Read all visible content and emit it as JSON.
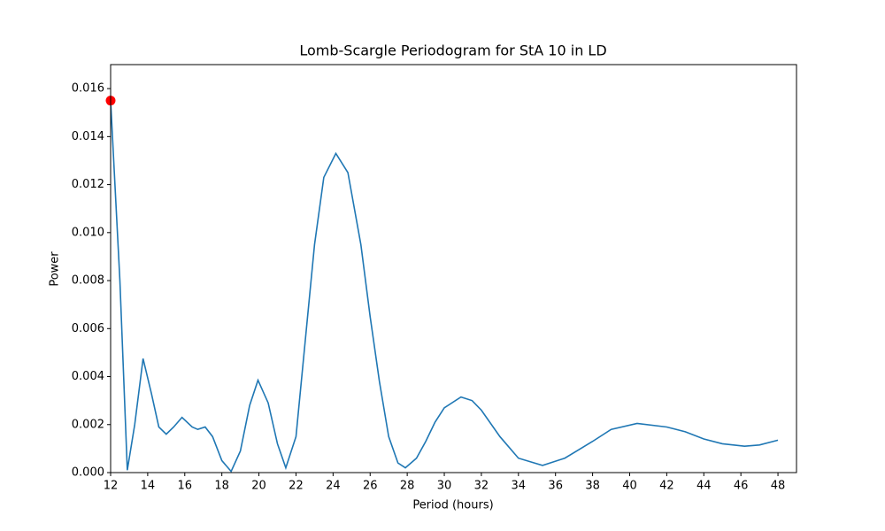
{
  "chart_data": {
    "type": "line",
    "title": "Lomb-Scargle Periodogram for StA 10 in LD",
    "x_label": "Period (hours)",
    "y_label": "Power",
    "x": [
      12,
      12.5,
      12.9,
      13.3,
      13.75,
      14.2,
      14.6,
      15,
      15.4,
      15.85,
      16.4,
      16.7,
      17.1,
      17.5,
      18,
      18.5,
      19,
      19.5,
      19.95,
      20.5,
      21,
      21.45,
      22,
      22.5,
      23,
      23.5,
      24.15,
      24.8,
      25.5,
      26,
      26.5,
      27,
      27.5,
      27.9,
      28.5,
      29,
      29.5,
      30,
      30.9,
      31.5,
      32,
      33,
      34,
      35.3,
      36.5,
      38,
      39,
      40.4,
      42,
      43,
      44,
      45,
      46.2,
      47,
      48
    ],
    "values": [
      0.0155,
      0.008,
      0.0001,
      0.002,
      0.00475,
      0.0033,
      0.0019,
      0.0016,
      0.0019,
      0.0023,
      0.0019,
      0.0018,
      0.0019,
      0.0015,
      0.0005,
      5e-05,
      0.0009,
      0.0028,
      0.00385,
      0.0029,
      0.0012,
      0.0002,
      0.0015,
      0.0055,
      0.0095,
      0.0123,
      0.0133,
      0.0125,
      0.0095,
      0.0065,
      0.0038,
      0.0015,
      0.0004,
      0.0002,
      0.0006,
      0.0013,
      0.0021,
      0.0027,
      0.00315,
      0.003,
      0.0026,
      0.0015,
      0.0006,
      0.0003,
      0.0006,
      0.0013,
      0.0018,
      0.00205,
      0.0019,
      0.0017,
      0.0014,
      0.0012,
      0.0011,
      0.00115,
      0.00135
    ],
    "color": "#1f77b4",
    "peak": {
      "x": 12,
      "y": 0.0155,
      "color": "#ff0000"
    },
    "xlim": [
      12,
      49
    ],
    "ylim": [
      0,
      0.017
    ],
    "xticks": [
      12,
      14,
      16,
      18,
      20,
      22,
      24,
      26,
      28,
      30,
      32,
      34,
      36,
      38,
      40,
      42,
      44,
      46,
      48
    ],
    "yticks": [
      {
        "value": 0,
        "label": "0.000"
      },
      {
        "value": 0.002,
        "label": "0.002"
      },
      {
        "value": 0.004,
        "label": "0.004"
      },
      {
        "value": 0.006,
        "label": "0.006"
      },
      {
        "value": 0.008,
        "label": "0.008"
      },
      {
        "value": 0.01,
        "label": "0.010"
      },
      {
        "value": 0.012,
        "label": "0.012"
      },
      {
        "value": 0.014,
        "label": "0.014"
      },
      {
        "value": 0.016,
        "label": "0.016"
      }
    ]
  }
}
